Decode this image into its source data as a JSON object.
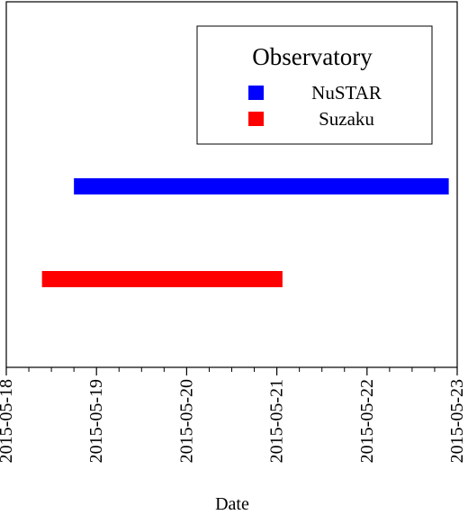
{
  "chart_data": {
    "type": "timeline",
    "xlabel": "Date",
    "ylabel": "",
    "xlim": [
      "2015-05-18",
      "2015-05-23"
    ],
    "x_ticks": [
      "2015-05-18",
      "2015-05-19",
      "2015-05-20",
      "2015-05-21",
      "2015-05-22",
      "2015-05-23"
    ],
    "minor_ticks_per_day": 4,
    "grid": false,
    "legend": {
      "title": "Observatory",
      "position": "top-right",
      "entries": [
        {
          "name": "NuSTAR",
          "color": "#0000ff"
        },
        {
          "name": "Suzaku",
          "color": "#ff0000"
        }
      ]
    },
    "series": [
      {
        "name": "NuSTAR",
        "start": "2015-05-18T18:00",
        "end": "2015-05-22T21:45",
        "color": "#0000ff"
      },
      {
        "name": "Suzaku",
        "start": "2015-05-18T09:30",
        "end": "2015-05-21T01:30",
        "color": "#ff0000"
      }
    ]
  }
}
